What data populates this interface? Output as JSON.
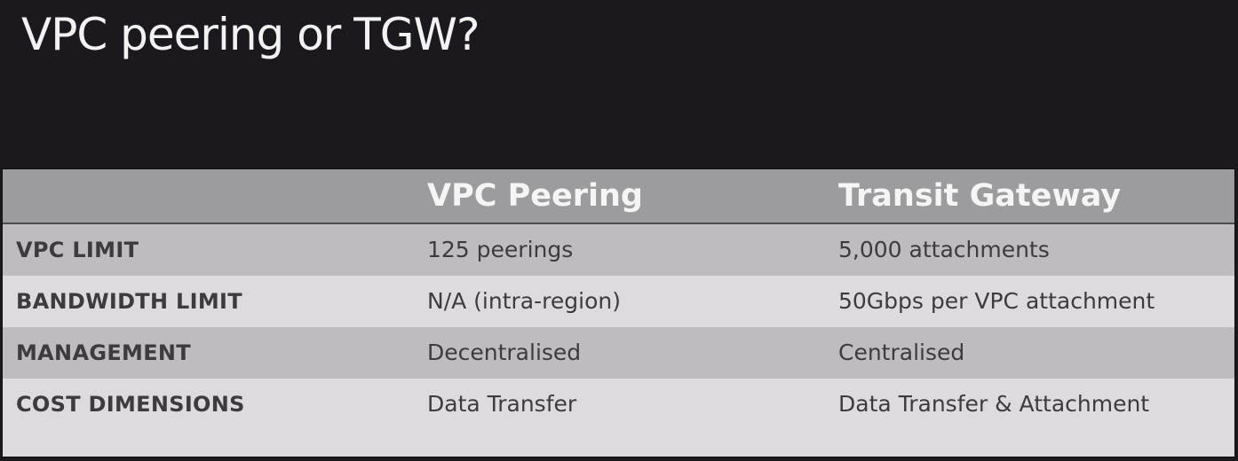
{
  "title": "VPC peering or TGW?",
  "table": {
    "columns": [
      "",
      "VPC Peering",
      "Transit Gateway"
    ],
    "rows": [
      {
        "label": "VPC LIMIT",
        "vpc_peering": "125 peerings",
        "transit_gateway": "5,000 attachments"
      },
      {
        "label": "BANDWIDTH LIMIT",
        "vpc_peering": "N/A (intra-region)",
        "transit_gateway": "50Gbps per VPC attachment"
      },
      {
        "label": "MANAGEMENT",
        "vpc_peering": "Decentralised",
        "transit_gateway": "Centralised"
      },
      {
        "label": "COST DIMENSIONS",
        "vpc_peering": "Data Transfer",
        "transit_gateway": "Data Transfer & Attachment"
      }
    ]
  },
  "colors": {
    "background": "#1b191d",
    "title_text": "#f2f2f2",
    "header_background": "#9c9b9d",
    "header_text": "#f5f5f5",
    "row_shaded": "#bebcbf",
    "row_light": "#dddbde",
    "cell_text": "#3d3b3f"
  }
}
